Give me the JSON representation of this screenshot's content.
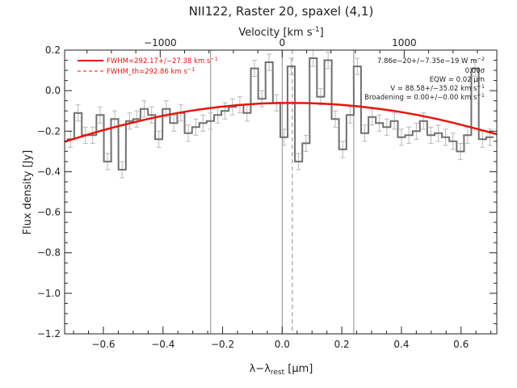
{
  "chart_data": {
    "type": "line",
    "title": "NII122, Raster 20, spaxel (4,1)",
    "xlabel": "λ−λ",
    "xlabel_sub": "rest",
    "xlabel_unit": " [μm]",
    "ylabel": "Flux density [Jy]",
    "top_xlabel": "Velocity [km s",
    "top_xlabel_sup": "-1",
    "top_xlabel_end": "]",
    "xlim": [
      -0.73,
      0.72
    ],
    "ylim": [
      -1.2,
      0.2
    ],
    "x_ticks": [
      -0.6,
      -0.4,
      -0.2,
      0.0,
      0.2,
      0.4,
      0.6
    ],
    "x_tick_labels": [
      "−0.6",
      "−0.4",
      "−0.2",
      "0.0",
      "0.2",
      "0.4",
      "0.6"
    ],
    "y_ticks": [
      -1.2,
      -1.0,
      -0.8,
      -0.6,
      -0.4,
      -0.2,
      0.0,
      0.2
    ],
    "y_tick_labels": [
      "−1.2",
      "−1.0",
      "−0.8",
      "−0.6",
      "−0.4",
      "−0.2",
      "0.0",
      "0.2"
    ],
    "top_ticks_kms": [
      -1000,
      0,
      1000
    ],
    "top_tick_labels": [
      "−1000",
      "0",
      "1000"
    ],
    "kms_per_um": 2443,
    "grid": false,
    "legend_position": "top-left",
    "series": [
      {
        "name": "spectrum",
        "kind": "step",
        "color": "#707070",
        "bin_width": 0.0247,
        "x": [
          -0.71,
          -0.685,
          -0.66,
          -0.636,
          -0.611,
          -0.586,
          -0.562,
          -0.537,
          -0.512,
          -0.488,
          -0.463,
          -0.438,
          -0.414,
          -0.389,
          -0.364,
          -0.34,
          -0.315,
          -0.29,
          -0.266,
          -0.241,
          -0.216,
          -0.192,
          -0.167,
          -0.142,
          -0.118,
          -0.093,
          -0.068,
          -0.044,
          -0.019,
          0.006,
          0.03,
          0.055,
          0.08,
          0.104,
          0.129,
          0.154,
          0.178,
          0.203,
          0.228,
          0.252,
          0.277,
          0.302,
          0.326,
          0.351,
          0.376,
          0.4,
          0.425,
          0.45,
          0.474,
          0.499,
          0.524,
          0.548,
          0.573,
          0.598,
          0.622,
          0.647,
          0.672,
          0.697
        ],
        "y": [
          -0.24,
          -0.11,
          -0.22,
          -0.22,
          -0.12,
          -0.35,
          -0.14,
          -0.39,
          -0.15,
          -0.14,
          -0.09,
          -0.12,
          -0.24,
          -0.09,
          -0.16,
          -0.11,
          -0.21,
          -0.18,
          -0.16,
          -0.15,
          -0.12,
          -0.1,
          -0.08,
          -0.07,
          -0.11,
          0.11,
          -0.04,
          0.14,
          -0.06,
          -0.23,
          0.12,
          -0.35,
          -0.26,
          0.16,
          -0.03,
          0.15,
          -0.14,
          -0.29,
          -0.12,
          0.12,
          -0.21,
          -0.13,
          -0.16,
          -0.18,
          -0.15,
          -0.23,
          -0.22,
          -0.2,
          -0.15,
          -0.22,
          -0.21,
          -0.23,
          -0.25,
          -0.3,
          -0.22,
          0.11,
          -0.24,
          -0.23
        ],
        "yerr": 0.04
      },
      {
        "name": "FWHM=292.17+/−27.38 km s⁻¹",
        "kind": "curve",
        "color": "#e8140c",
        "x": [
          -0.73,
          -0.6,
          -0.5,
          -0.4,
          -0.3,
          -0.2,
          -0.1,
          0.0,
          0.1,
          0.2,
          0.3,
          0.4,
          0.5,
          0.6,
          0.72
        ],
        "y": [
          -0.252,
          -0.195,
          -0.157,
          -0.124,
          -0.098,
          -0.079,
          -0.066,
          -0.061,
          -0.062,
          -0.07,
          -0.085,
          -0.106,
          -0.134,
          -0.168,
          -0.215
        ]
      },
      {
        "name": "FWHM_th=292.86 km s⁻¹",
        "kind": "legend_only",
        "color": "#e8140c"
      }
    ],
    "vertical_lines": [
      {
        "x": -0.24,
        "style": "solid",
        "color": "#8c8c8c"
      },
      {
        "x": 0.0,
        "style": "solid",
        "color": "#8c8c8c"
      },
      {
        "x": 0.034,
        "style": "dashed",
        "color": "#8c8c8c"
      },
      {
        "x": 0.24,
        "style": "solid",
        "color": "#8c8c8c"
      }
    ],
    "annotations": [
      {
        "text": "7.86e−20+/−7.35e−19 W m",
        "sup": "−2"
      },
      {
        "text": "0.00σ",
        "sup": ""
      },
      {
        "text": "EQW = 0.02 μm",
        "sup": ""
      },
      {
        "text": "V = 88.58+/−35.02 km s",
        "sup": "−1"
      },
      {
        "text": "Broadening = 0.00+/−0.00 km s",
        "sup": "−1"
      }
    ]
  },
  "legend": {
    "item1": "FWHM=292.17+/−27.38 km s",
    "item1_sup": "−1",
    "item2": "FWHM_th=292.86 km s",
    "item2_sup": "−1"
  },
  "colors": {
    "fit": "#e8140c",
    "spectrum": "#707070",
    "errorbars": "#b8b8b8",
    "axes": "#222222"
  }
}
